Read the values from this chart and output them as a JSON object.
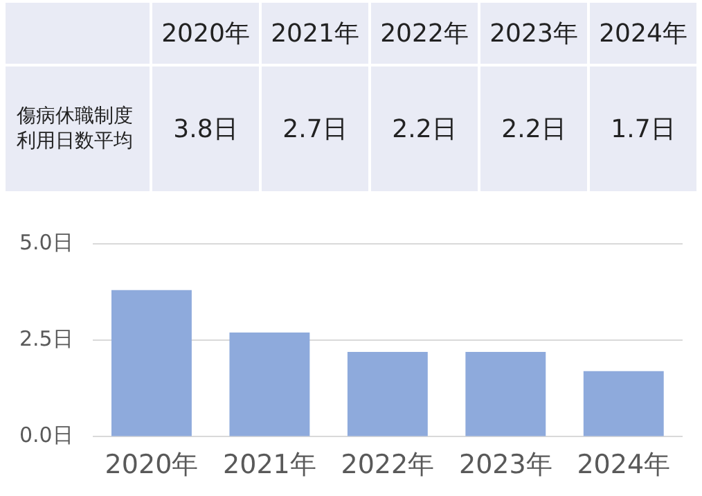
{
  "chart_data": {
    "type": "bar",
    "categories": [
      "2020年",
      "2021年",
      "2022年",
      "2023年",
      "2024年"
    ],
    "series": [
      {
        "name": "傷病休職制度利用日数平均",
        "color": "#8eaadc",
        "values": [
          3.8,
          2.7,
          2.2,
          2.2,
          1.7
        ],
        "value_labels": [
          "3.8日",
          "2.7日",
          "2.2日",
          "2.2日",
          "1.7日"
        ]
      }
    ],
    "ylim": [
      0,
      5
    ],
    "yticks": [
      {
        "value": 0,
        "label": "0.0日"
      },
      {
        "value": 2.5,
        "label": "2.5日"
      },
      {
        "value": 5,
        "label": "5.0日"
      }
    ],
    "grid": "y",
    "legend": false
  }
}
